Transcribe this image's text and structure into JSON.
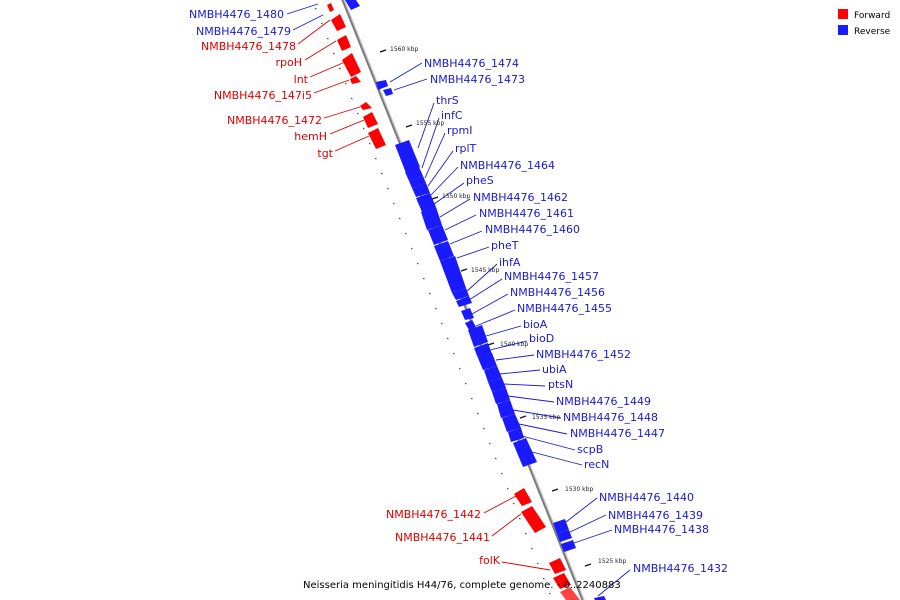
{
  "colors": {
    "forward": "#ff0000",
    "reverse": "#1a1aff",
    "backbone": "#8a8a8a"
  },
  "legend": {
    "forward_label": "Forward",
    "reverse_label": "Reverse"
  },
  "caption": "Neisseria meningitidis H44/76, complete genome. - 0..2240883",
  "scale_labels": [
    "1560 kbp",
    "1555 kbp",
    "1550 kbp",
    "1545 kbp",
    "1540 kbp",
    "1535 kbp",
    "1530 kbp",
    "1525 kbp"
  ],
  "forward_labels": [
    "NMBH4476_1478",
    "rpoH",
    "lnt",
    "NMBH4476_147i5",
    "NMBH4476_1472",
    "hemH",
    "tgt",
    "NMBH4476_1442",
    "NMBH4476_1441",
    "folK"
  ],
  "reverse_labels": [
    "NMBH4476_1480",
    "NMBH4476_1479",
    "NMBH4476_1474",
    "NMBH4476_1473",
    "thrS",
    "infC",
    "rpmI",
    "rplT",
    "NMBH4476_1464",
    "pheS",
    "NMBH4476_1462",
    "NMBH4476_1461",
    "NMBH4476_1460",
    "pheT",
    "ihfA",
    "NMBH4476_1457",
    "NMBH4476_1456",
    "NMBH4476_1455",
    "bioA",
    "bioD",
    "NMBH4476_1452",
    "ubiA",
    "ptsN",
    "NMBH4476_1449",
    "NMBH4476_1448",
    "NMBH4476_1447",
    "scpB",
    "recN",
    "NMBH4476_1440",
    "NMBH4476_1439",
    "NMBH4476_1438",
    "NMBH4476_1432"
  ]
}
